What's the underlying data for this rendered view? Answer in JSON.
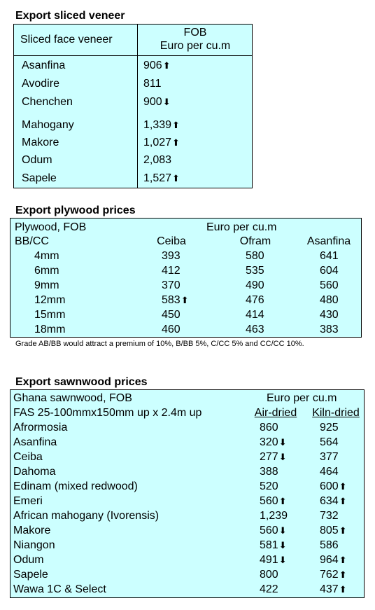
{
  "veneer": {
    "title": "Export sliced veneer",
    "col1_header": "Sliced face veneer",
    "col2_header_line1": "FOB",
    "col2_header_line2": "Euro per cu.m",
    "rows": [
      {
        "name": "Asanfina",
        "value": "906",
        "trend": "up"
      },
      {
        "name": "Avodire",
        "value": "811",
        "trend": ""
      },
      {
        "name": "Chenchen",
        "value": "900",
        "trend": "down"
      },
      {
        "name": "Mahogany",
        "value": "1,339",
        "trend": "up"
      },
      {
        "name": "Makore",
        "value": "1,027",
        "trend": "up"
      },
      {
        "name": "Odum",
        "value": "2,083",
        "trend": ""
      },
      {
        "name": "Sapele",
        "value": "1,527",
        "trend": "up"
      }
    ]
  },
  "plywood": {
    "title": "Export plywood prices",
    "header_left1": "Plywood, FOB",
    "header_left2": "BB/CC",
    "header_unit": "Euro per cu.m",
    "columns": [
      "Ceiba",
      "Ofram",
      "Asanfina"
    ],
    "rows": [
      {
        "thickness": "4mm",
        "ceiba": "393",
        "ceiba_trend": "",
        "ofram": "580",
        "asanfina": "641"
      },
      {
        "thickness": "6mm",
        "ceiba": "412",
        "ceiba_trend": "",
        "ofram": "535",
        "asanfina": "604"
      },
      {
        "thickness": "9mm",
        "ceiba": "370",
        "ceiba_trend": "",
        "ofram": "490",
        "asanfina": "560"
      },
      {
        "thickness": "12mm",
        "ceiba": "583",
        "ceiba_trend": "up",
        "ofram": "476",
        "asanfina": "480"
      },
      {
        "thickness": "15mm",
        "ceiba": "450",
        "ceiba_trend": "",
        "ofram": "414",
        "asanfina": "430"
      },
      {
        "thickness": "18mm",
        "ceiba": "460",
        "ceiba_trend": "",
        "ofram": "463",
        "asanfina": "383"
      }
    ],
    "note": "Grade AB/BB would attract a premium of 10%, B/BB 5%, C/CC 5% and CC/CC 10%."
  },
  "sawnwood": {
    "title": "Export sawnwood prices",
    "header_left1": "Ghana sawnwood, FOB",
    "header_left2": "FAS 25-100mmx150mm up x 2.4m up",
    "header_unit": "Euro per cu.m",
    "col_air": "Air-dried",
    "col_kiln": "Kiln-dried",
    "rows": [
      {
        "name": "Afrormosia",
        "air": "860",
        "air_trend": "",
        "kiln": "925",
        "kiln_trend": ""
      },
      {
        "name": "Asanfina",
        "air": "320",
        "air_trend": "down",
        "kiln": "564",
        "kiln_trend": ""
      },
      {
        "name": "Ceiba",
        "air": "277",
        "air_trend": "down",
        "kiln": "377",
        "kiln_trend": ""
      },
      {
        "name": "Dahoma",
        "air": "388",
        "air_trend": "",
        "kiln": "464",
        "kiln_trend": ""
      },
      {
        "name": "Edinam (mixed redwood)",
        "air": "520",
        "air_trend": "",
        "kiln": "600",
        "kiln_trend": "up"
      },
      {
        "name": "Emeri",
        "air": "560",
        "air_trend": "up",
        "kiln": "634",
        "kiln_trend": "up"
      },
      {
        "name": "African mahogany (Ivorensis)",
        "air": "1,239",
        "air_trend": "",
        "kiln": "732",
        "kiln_trend": ""
      },
      {
        "name": "Makore",
        "air": "560",
        "air_trend": "down",
        "kiln": "805",
        "kiln_trend": "up"
      },
      {
        "name": "Niangon",
        "air": "581",
        "air_trend": "down",
        "kiln": "586",
        "kiln_trend": ""
      },
      {
        "name": "Odum",
        "air": "491",
        "air_trend": "down",
        "kiln": "964",
        "kiln_trend": "up"
      },
      {
        "name": "Sapele",
        "air": "800",
        "air_trend": "",
        "kiln": "762",
        "kiln_trend": "up"
      },
      {
        "name": "Wawa 1C & Select",
        "air": "422",
        "air_trend": "",
        "kiln": "437",
        "kiln_trend": "up"
      }
    ]
  }
}
